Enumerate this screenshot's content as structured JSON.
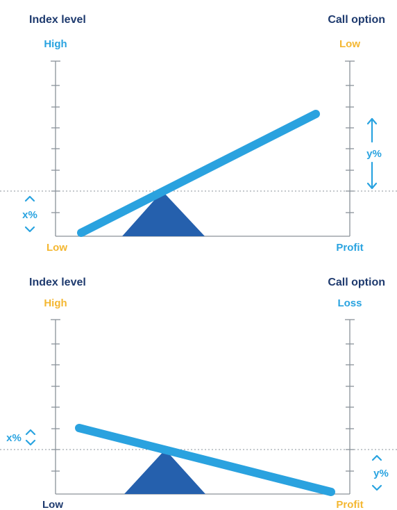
{
  "colors": {
    "dark_blue": "#1e3a6e",
    "bright_blue": "#29a3e0",
    "orange": "#f4b731",
    "axis_gray": "#8a9299",
    "fulcrum_blue": "#2560ad",
    "lever_blue": "#2aa2df"
  },
  "panels": [
    {
      "left_title": "Index level",
      "right_title": "Call option",
      "left_top": "High",
      "left_bottom": "Low",
      "right_top": "Low",
      "right_bottom": "Profit",
      "left_pct": "x%",
      "right_pct": "y%",
      "left_top_color": "bright_blue",
      "left_bottom_color": "orange",
      "right_top_color": "orange",
      "right_bottom_color": "bright_blue"
    },
    {
      "left_title": "Index level",
      "right_title": "Call option",
      "left_top": "High",
      "left_bottom": "Low",
      "right_top": "Loss",
      "right_bottom": "Profit",
      "left_pct": "x%",
      "right_pct": "y%",
      "left_top_color": "orange",
      "left_bottom_color": "dark_blue",
      "right_top_color": "bright_blue",
      "right_bottom_color": "orange"
    }
  ]
}
